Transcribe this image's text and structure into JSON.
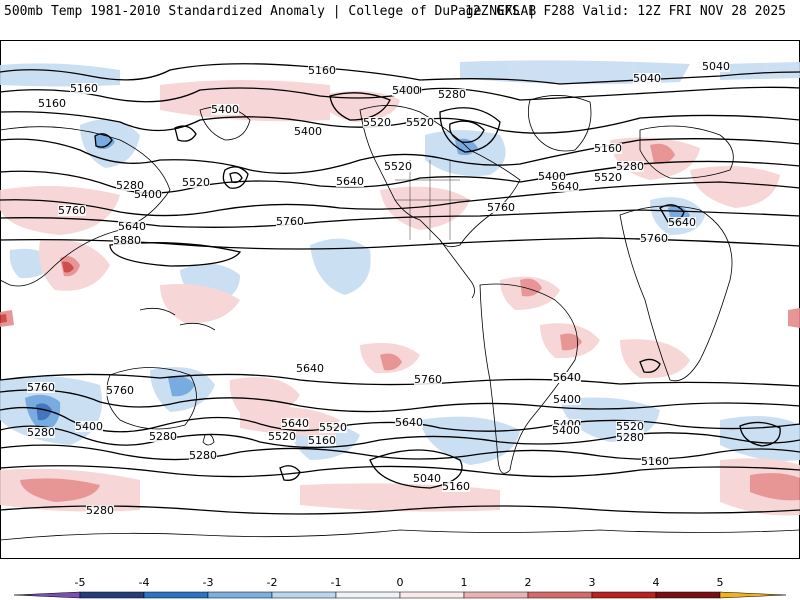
{
  "header": {
    "left": "500mb Temp 1981-2010 Standardized Anomaly | College of DuPage NEXLAB",
    "right": "12Z GFS | F288 Valid: 12Z FRI NOV 28 2025"
  },
  "colors": {
    "cold_strong": "#2f68b8",
    "cold_mid": "#6aa2dc",
    "cold_weak": "#c6dcf2",
    "neutral": "#ffffff",
    "warm_weak": "#f6d2d2",
    "warm_mid": "#e58a8a",
    "warm_strong": "#c93a3a",
    "contour": "#000000",
    "coastline": "#000000"
  },
  "colorbar": {
    "ticks": [
      "-5",
      "-4",
      "-3",
      "-2",
      "-1",
      "0",
      "1",
      "2",
      "3",
      "4",
      "5"
    ],
    "segments": [
      "#7a4fb0",
      "#263e78",
      "#2c73c4",
      "#7eaedd",
      "#bcd6ee",
      "#eef3f8",
      "#fbeaea",
      "#eab3b3",
      "#d56a6a",
      "#b82424",
      "#7a0f12",
      "#f0b020"
    ]
  },
  "contour_labels": [
    "5160",
    "5040",
    "5040",
    "5160",
    "5160",
    "5400",
    "5280",
    "5400",
    "5400",
    "5520",
    "5400",
    "5520",
    "5640",
    "5520",
    "5160",
    "5280",
    "5400",
    "5520",
    "5640",
    "5280",
    "5400",
    "5520",
    "5760",
    "5760",
    "5640",
    "5760",
    "5880",
    "5640",
    "5760",
    "5640",
    "5760",
    "5760",
    "5640",
    "5400",
    "5760",
    "5640",
    "5520",
    "5280",
    "5400",
    "5520",
    "5640",
    "5400",
    "5520",
    "5160",
    "5280",
    "5160",
    "5280",
    "5040",
    "5160",
    "5280",
    "5280",
    "5400",
    "5640"
  ]
}
